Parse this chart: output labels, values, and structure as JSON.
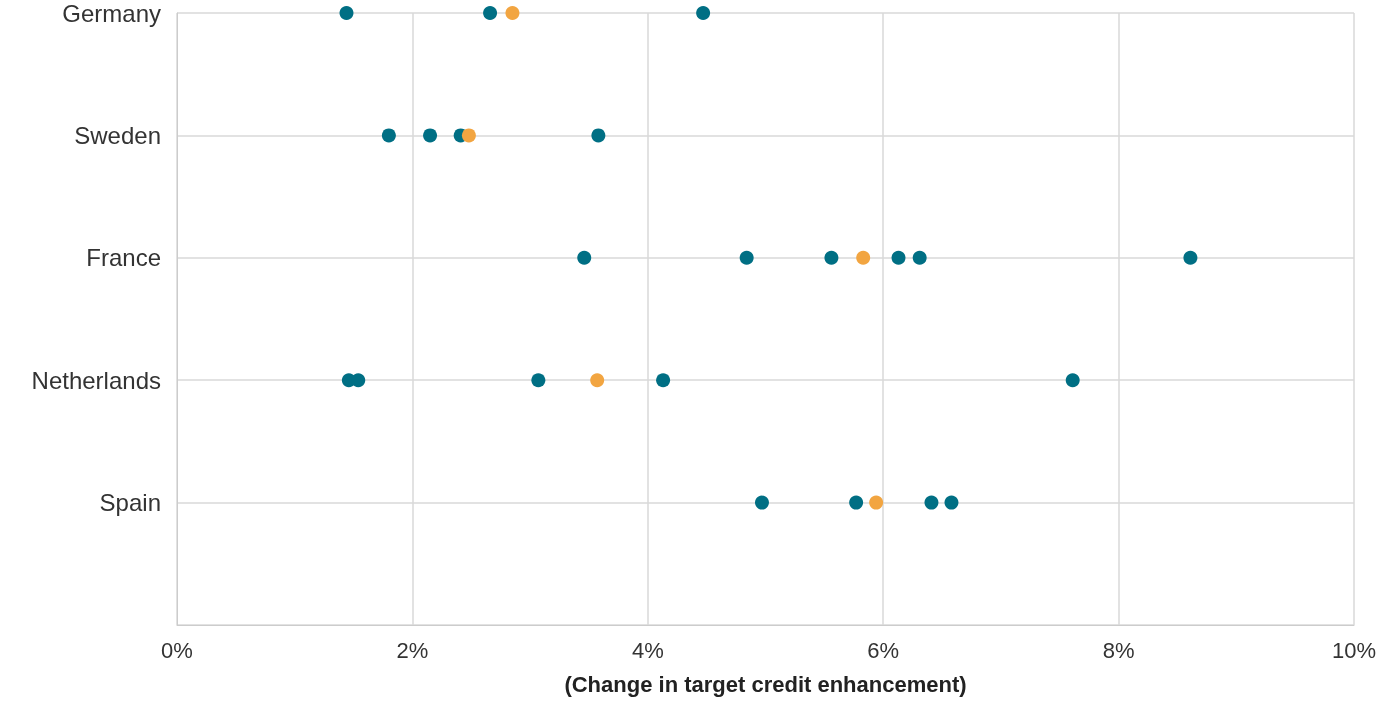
{
  "chart_data": {
    "type": "scatter",
    "orientation": "horizontal",
    "xlabel": "(Change in target credit enhancement)",
    "categories": [
      "Germany",
      "Sweden",
      "France",
      "Netherlands",
      "Spain",
      null
    ],
    "series": [
      {
        "color": "#006f84",
        "x": [
          "Germany",
          "Germany",
          "Germany",
          "Sweden",
          "Sweden",
          "Sweden",
          "Sweden",
          "France",
          "France",
          "France",
          "France",
          "France",
          "France",
          "Netherlands",
          "Netherlands",
          "Netherlands",
          "Netherlands",
          "Netherlands",
          "Spain",
          "Spain",
          "Spain",
          "Spain"
        ],
        "values": [
          1.44,
          2.66,
          4.47,
          1.8,
          2.15,
          2.41,
          3.58,
          3.46,
          4.84,
          5.56,
          6.13,
          6.31,
          8.61,
          1.46,
          1.54,
          3.07,
          4.13,
          7.61,
          4.97,
          5.77,
          6.41,
          6.58
        ]
      },
      {
        "color": "#f2a541",
        "x": [
          "Germany",
          "Sweden",
          "France",
          "Netherlands",
          "Spain"
        ],
        "values": [
          2.85,
          2.48,
          5.83,
          3.57,
          5.94
        ]
      }
    ],
    "xlim": [
      0,
      10
    ],
    "xticks": [
      {
        "value": 0,
        "label": "0%"
      },
      {
        "value": 2,
        "label": "2%"
      },
      {
        "value": 4,
        "label": "4%"
      },
      {
        "value": 6,
        "label": "6%"
      },
      {
        "value": 8,
        "label": "8%"
      },
      {
        "value": 10,
        "label": "10%"
      }
    ],
    "grid": true,
    "marker": "circle"
  }
}
